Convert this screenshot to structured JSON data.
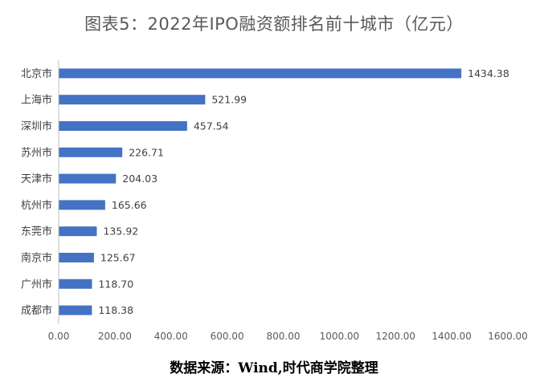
{
  "chart_data": {
    "type": "bar",
    "orientation": "horizontal",
    "title": "图表5：2022年IPO融资额排名前十城市（亿元）",
    "categories": [
      "北京市",
      "上海市",
      "深圳市",
      "苏州市",
      "天津市",
      "杭州市",
      "东莞市",
      "南京市",
      "广州市",
      "成都市"
    ],
    "values": [
      1434.38,
      521.99,
      457.54,
      226.71,
      204.03,
      165.66,
      135.92,
      125.67,
      118.7,
      118.38
    ],
    "value_labels": [
      "1434.38",
      "521.99",
      "457.54",
      "226.71",
      "204.03",
      "165.66",
      "135.92",
      "125.67",
      "118.70",
      "118.38"
    ],
    "xticks": [
      "0.00",
      "200.00",
      "400.00",
      "600.00",
      "800.00",
      "1000.00",
      "1200.00",
      "1400.00",
      "1600.00"
    ],
    "xlim": [
      0,
      1600
    ],
    "grid": false,
    "bar_color": "#4472c4"
  },
  "source_note": "数据来源：Wind,时代商学院整理"
}
